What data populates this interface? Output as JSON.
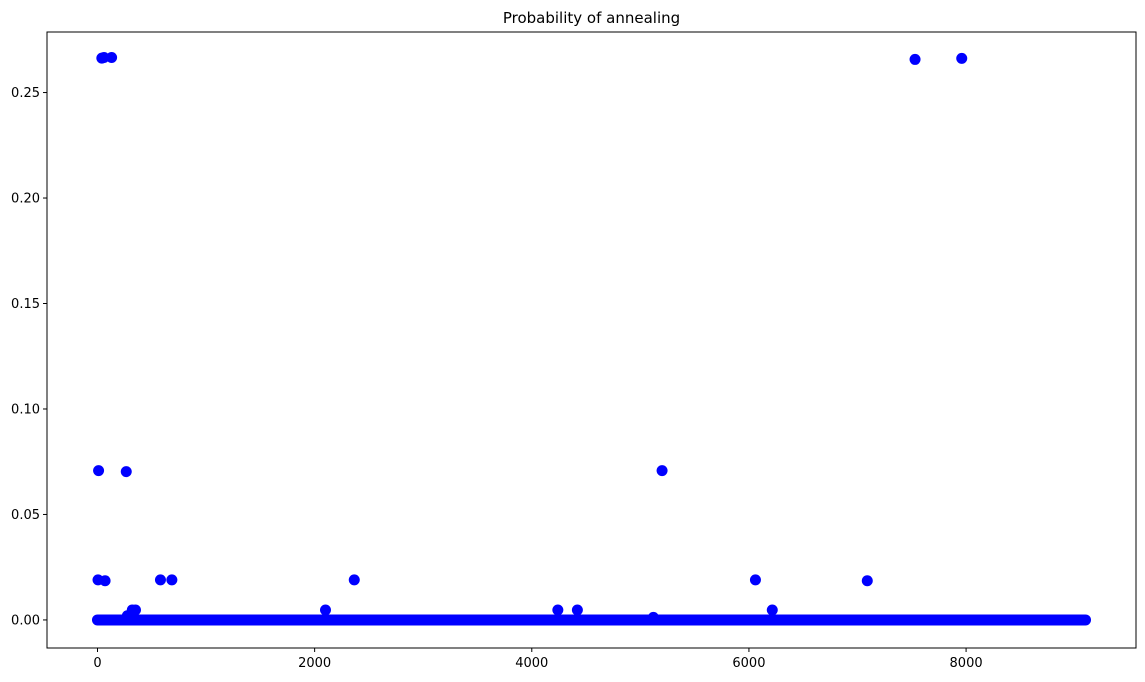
{
  "chart_data": {
    "type": "scatter",
    "title": "Probability of annealing",
    "xlabel": "",
    "ylabel": "",
    "xlim": [
      -465,
      9565
    ],
    "ylim": [
      -0.0133,
      0.2787
    ],
    "x_ticks": [
      0,
      2000,
      4000,
      6000,
      8000
    ],
    "x_tick_labels": [
      "0",
      "2000",
      "4000",
      "6000",
      "8000"
    ],
    "y_ticks": [
      0.0,
      0.05,
      0.1,
      0.15,
      0.2,
      0.25
    ],
    "y_tick_labels": [
      "0.00",
      "0.05",
      "0.10",
      "0.15",
      "0.20",
      "0.25"
    ],
    "grid": false,
    "legend": "none",
    "marker_color": "#0000ff",
    "baseline": {
      "x_start": 0,
      "x_end": 9100,
      "y": 0.0
    },
    "points": [
      {
        "x": 40,
        "y": 0.2663
      },
      {
        "x": 60,
        "y": 0.2666
      },
      {
        "x": 130,
        "y": 0.2666
      },
      {
        "x": 7530,
        "y": 0.2657
      },
      {
        "x": 7960,
        "y": 0.2662
      },
      {
        "x": 10,
        "y": 0.0708
      },
      {
        "x": 265,
        "y": 0.0703
      },
      {
        "x": 5200,
        "y": 0.0708
      },
      {
        "x": 5,
        "y": 0.019
      },
      {
        "x": 70,
        "y": 0.0186
      },
      {
        "x": 580,
        "y": 0.019
      },
      {
        "x": 685,
        "y": 0.019
      },
      {
        "x": 2365,
        "y": 0.019
      },
      {
        "x": 6060,
        "y": 0.019
      },
      {
        "x": 7090,
        "y": 0.0186
      },
      {
        "x": 320,
        "y": 0.0047
      },
      {
        "x": 350,
        "y": 0.0047
      },
      {
        "x": 2100,
        "y": 0.0047
      },
      {
        "x": 4240,
        "y": 0.0047
      },
      {
        "x": 4420,
        "y": 0.0047
      },
      {
        "x": 6215,
        "y": 0.0047
      },
      {
        "x": 275,
        "y": 0.002
      },
      {
        "x": 5120,
        "y": 0.0012
      }
    ]
  }
}
